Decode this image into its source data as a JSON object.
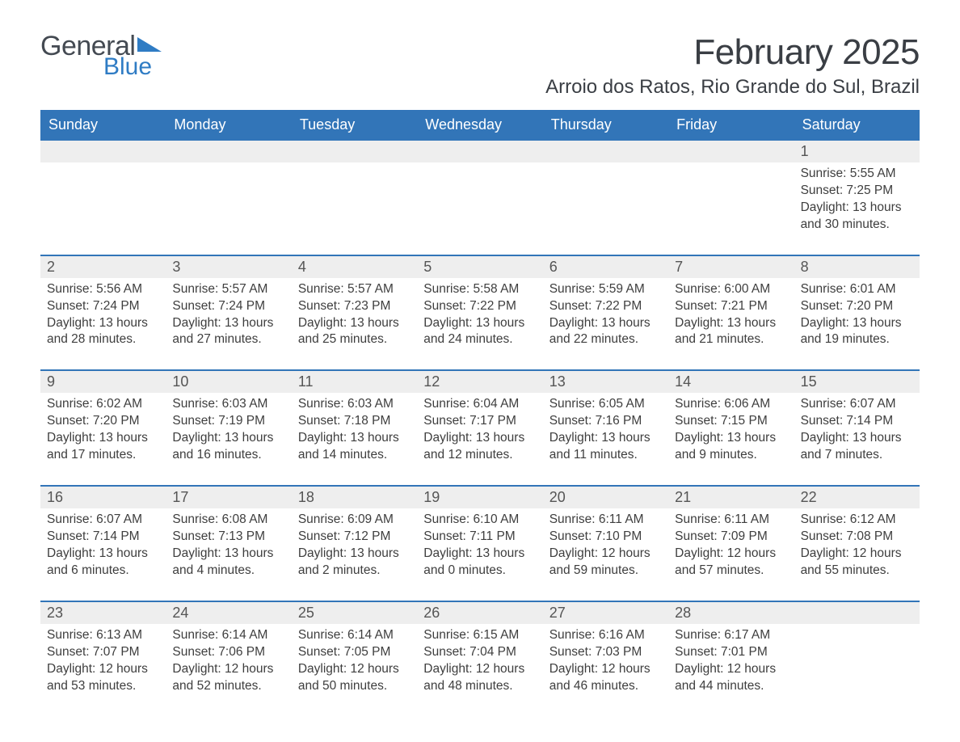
{
  "brand": {
    "text1": "General",
    "text2": "Blue",
    "general_color": "#444a52",
    "blue_color": "#2f7cc4",
    "triangle_color": "#2f7cc4"
  },
  "header": {
    "month_title": "February 2025",
    "location": "Arroio dos Ratos, Rio Grande do Sul, Brazil"
  },
  "colors": {
    "header_bg": "#3275b8",
    "header_text": "#ffffff",
    "daynum_bg": "#eeeeee",
    "week_border": "#3275b8",
    "body_text": "#3e3e3e"
  },
  "typography": {
    "month_title_fontsize": 44,
    "location_fontsize": 24,
    "dow_fontsize": 18,
    "daynum_fontsize": 18,
    "body_fontsize": 15.5
  },
  "days_of_week": [
    "Sunday",
    "Monday",
    "Tuesday",
    "Wednesday",
    "Thursday",
    "Friday",
    "Saturday"
  ],
  "weeks": [
    [
      {
        "n": "",
        "sunrise": "",
        "sunset": "",
        "daylight": ""
      },
      {
        "n": "",
        "sunrise": "",
        "sunset": "",
        "daylight": ""
      },
      {
        "n": "",
        "sunrise": "",
        "sunset": "",
        "daylight": ""
      },
      {
        "n": "",
        "sunrise": "",
        "sunset": "",
        "daylight": ""
      },
      {
        "n": "",
        "sunrise": "",
        "sunset": "",
        "daylight": ""
      },
      {
        "n": "",
        "sunrise": "",
        "sunset": "",
        "daylight": ""
      },
      {
        "n": "1",
        "sunrise": "Sunrise: 5:55 AM",
        "sunset": "Sunset: 7:25 PM",
        "daylight": "Daylight: 13 hours and 30 minutes."
      }
    ],
    [
      {
        "n": "2",
        "sunrise": "Sunrise: 5:56 AM",
        "sunset": "Sunset: 7:24 PM",
        "daylight": "Daylight: 13 hours and 28 minutes."
      },
      {
        "n": "3",
        "sunrise": "Sunrise: 5:57 AM",
        "sunset": "Sunset: 7:24 PM",
        "daylight": "Daylight: 13 hours and 27 minutes."
      },
      {
        "n": "4",
        "sunrise": "Sunrise: 5:57 AM",
        "sunset": "Sunset: 7:23 PM",
        "daylight": "Daylight: 13 hours and 25 minutes."
      },
      {
        "n": "5",
        "sunrise": "Sunrise: 5:58 AM",
        "sunset": "Sunset: 7:22 PM",
        "daylight": "Daylight: 13 hours and 24 minutes."
      },
      {
        "n": "6",
        "sunrise": "Sunrise: 5:59 AM",
        "sunset": "Sunset: 7:22 PM",
        "daylight": "Daylight: 13 hours and 22 minutes."
      },
      {
        "n": "7",
        "sunrise": "Sunrise: 6:00 AM",
        "sunset": "Sunset: 7:21 PM",
        "daylight": "Daylight: 13 hours and 21 minutes."
      },
      {
        "n": "8",
        "sunrise": "Sunrise: 6:01 AM",
        "sunset": "Sunset: 7:20 PM",
        "daylight": "Daylight: 13 hours and 19 minutes."
      }
    ],
    [
      {
        "n": "9",
        "sunrise": "Sunrise: 6:02 AM",
        "sunset": "Sunset: 7:20 PM",
        "daylight": "Daylight: 13 hours and 17 minutes."
      },
      {
        "n": "10",
        "sunrise": "Sunrise: 6:03 AM",
        "sunset": "Sunset: 7:19 PM",
        "daylight": "Daylight: 13 hours and 16 minutes."
      },
      {
        "n": "11",
        "sunrise": "Sunrise: 6:03 AM",
        "sunset": "Sunset: 7:18 PM",
        "daylight": "Daylight: 13 hours and 14 minutes."
      },
      {
        "n": "12",
        "sunrise": "Sunrise: 6:04 AM",
        "sunset": "Sunset: 7:17 PM",
        "daylight": "Daylight: 13 hours and 12 minutes."
      },
      {
        "n": "13",
        "sunrise": "Sunrise: 6:05 AM",
        "sunset": "Sunset: 7:16 PM",
        "daylight": "Daylight: 13 hours and 11 minutes."
      },
      {
        "n": "14",
        "sunrise": "Sunrise: 6:06 AM",
        "sunset": "Sunset: 7:15 PM",
        "daylight": "Daylight: 13 hours and 9 minutes."
      },
      {
        "n": "15",
        "sunrise": "Sunrise: 6:07 AM",
        "sunset": "Sunset: 7:14 PM",
        "daylight": "Daylight: 13 hours and 7 minutes."
      }
    ],
    [
      {
        "n": "16",
        "sunrise": "Sunrise: 6:07 AM",
        "sunset": "Sunset: 7:14 PM",
        "daylight": "Daylight: 13 hours and 6 minutes."
      },
      {
        "n": "17",
        "sunrise": "Sunrise: 6:08 AM",
        "sunset": "Sunset: 7:13 PM",
        "daylight": "Daylight: 13 hours and 4 minutes."
      },
      {
        "n": "18",
        "sunrise": "Sunrise: 6:09 AM",
        "sunset": "Sunset: 7:12 PM",
        "daylight": "Daylight: 13 hours and 2 minutes."
      },
      {
        "n": "19",
        "sunrise": "Sunrise: 6:10 AM",
        "sunset": "Sunset: 7:11 PM",
        "daylight": "Daylight: 13 hours and 0 minutes."
      },
      {
        "n": "20",
        "sunrise": "Sunrise: 6:11 AM",
        "sunset": "Sunset: 7:10 PM",
        "daylight": "Daylight: 12 hours and 59 minutes."
      },
      {
        "n": "21",
        "sunrise": "Sunrise: 6:11 AM",
        "sunset": "Sunset: 7:09 PM",
        "daylight": "Daylight: 12 hours and 57 minutes."
      },
      {
        "n": "22",
        "sunrise": "Sunrise: 6:12 AM",
        "sunset": "Sunset: 7:08 PM",
        "daylight": "Daylight: 12 hours and 55 minutes."
      }
    ],
    [
      {
        "n": "23",
        "sunrise": "Sunrise: 6:13 AM",
        "sunset": "Sunset: 7:07 PM",
        "daylight": "Daylight: 12 hours and 53 minutes."
      },
      {
        "n": "24",
        "sunrise": "Sunrise: 6:14 AM",
        "sunset": "Sunset: 7:06 PM",
        "daylight": "Daylight: 12 hours and 52 minutes."
      },
      {
        "n": "25",
        "sunrise": "Sunrise: 6:14 AM",
        "sunset": "Sunset: 7:05 PM",
        "daylight": "Daylight: 12 hours and 50 minutes."
      },
      {
        "n": "26",
        "sunrise": "Sunrise: 6:15 AM",
        "sunset": "Sunset: 7:04 PM",
        "daylight": "Daylight: 12 hours and 48 minutes."
      },
      {
        "n": "27",
        "sunrise": "Sunrise: 6:16 AM",
        "sunset": "Sunset: 7:03 PM",
        "daylight": "Daylight: 12 hours and 46 minutes."
      },
      {
        "n": "28",
        "sunrise": "Sunrise: 6:17 AM",
        "sunset": "Sunset: 7:01 PM",
        "daylight": "Daylight: 12 hours and 44 minutes."
      },
      {
        "n": "",
        "sunrise": "",
        "sunset": "",
        "daylight": ""
      }
    ]
  ]
}
